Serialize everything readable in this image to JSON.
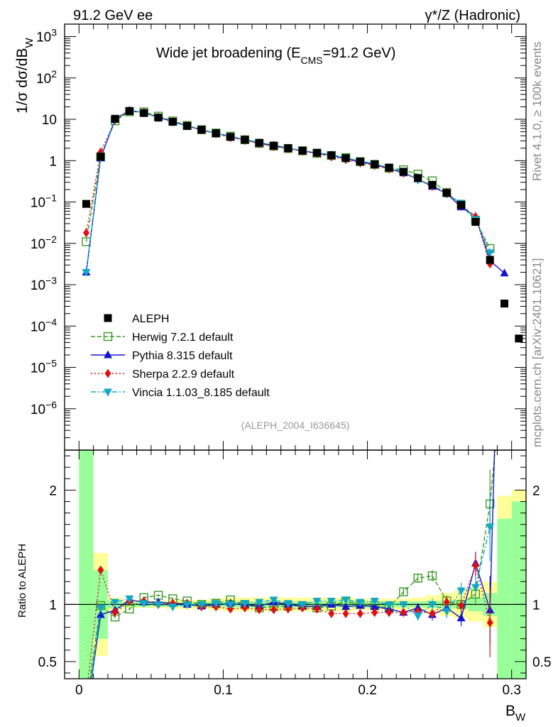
{
  "header": {
    "left": "91.2 GeV ee",
    "right": "γ*/Z (Hadronic)"
  },
  "side_notes": {
    "rivet": "Rivet 4.1.0, ≥ 100k events",
    "mcplots": "mcplots.cern.ch [arXiv:2401.10621]"
  },
  "chart_data": {
    "type": "line",
    "title": "Wide jet broadening (E_CMS=91.2 GeV)",
    "title_main": "Wide jet broadening (E",
    "title_sub": "CMS",
    "title_tail": "=91.2 GeV)",
    "analysis_tag": "(ALEPH_2004_I636645)",
    "xlabel": "B",
    "xlabel_sub": "W",
    "ylabel": "1/σ dσ/dB_W",
    "ylabel_main": "1/σ  dσ/dB",
    "ylabel_sub": "W",
    "ratio_ylabel": "Ratio to ALEPH",
    "xlim": [
      -0.01,
      0.31
    ],
    "ylim_log": [
      1e-07,
      2000
    ],
    "ratio_ylim": [
      0.35,
      2.35
    ],
    "x_ticks": [
      {
        "value": 0,
        "label": "0"
      },
      {
        "value": 0.1,
        "label": "0.1"
      },
      {
        "value": 0.2,
        "label": "0.2"
      },
      {
        "value": 0.3,
        "label": "0.3"
      }
    ],
    "y_ticks": [
      {
        "value": 1000,
        "base": "10",
        "exp": "3"
      },
      {
        "value": 100,
        "base": "10",
        "exp": "2"
      },
      {
        "value": 10,
        "base": "10",
        "exp": ""
      },
      {
        "value": 1,
        "base": "1",
        "exp": ""
      },
      {
        "value": 0.1,
        "base": "10",
        "exp": "−1"
      },
      {
        "value": 0.01,
        "base": "10",
        "exp": "−2"
      },
      {
        "value": 0.001,
        "base": "10",
        "exp": "−3"
      },
      {
        "value": 0.0001,
        "base": "10",
        "exp": "−4"
      },
      {
        "value": 1e-05,
        "base": "10",
        "exp": "−5"
      },
      {
        "value": 1e-06,
        "base": "10",
        "exp": "−6"
      }
    ],
    "ratio_ticks": [
      {
        "value": 2,
        "label": "2"
      },
      {
        "value": 1,
        "label": "1"
      },
      {
        "value": 0.5,
        "label": "0.5"
      }
    ],
    "x": [
      0.005,
      0.015,
      0.025,
      0.035,
      0.045,
      0.055,
      0.065,
      0.075,
      0.085,
      0.095,
      0.105,
      0.115,
      0.125,
      0.135,
      0.145,
      0.155,
      0.165,
      0.175,
      0.185,
      0.195,
      0.205,
      0.215,
      0.225,
      0.235,
      0.245,
      0.255,
      0.265,
      0.275,
      0.285,
      0.295,
      0.305
    ],
    "reference": {
      "name": "ALEPH",
      "color": "#000000",
      "values": [
        0.09,
        1.25,
        10.3,
        15.8,
        14.2,
        11.0,
        8.7,
        6.9,
        5.6,
        4.6,
        3.75,
        3.2,
        2.7,
        2.3,
        2.0,
        1.75,
        1.55,
        1.35,
        1.15,
        0.95,
        0.82,
        0.68,
        0.54,
        0.38,
        0.26,
        0.165,
        0.085,
        0.033,
        0.004,
        0.00035,
        5e-05
      ],
      "band_green": [
        2.05,
        0.3,
        0.035,
        0.02,
        0.02,
        0.02,
        0.02,
        0.02,
        0.02,
        0.025,
        0.025,
        0.025,
        0.025,
        0.025,
        0.025,
        0.025,
        0.025,
        0.025,
        0.025,
        0.025,
        0.025,
        0.025,
        0.025,
        0.025,
        0.03,
        0.03,
        0.035,
        0.06,
        0.1,
        0.75,
        0.9
      ],
      "band_yellow": [
        2.35,
        0.45,
        0.06,
        0.03,
        0.03,
        0.03,
        0.04,
        0.04,
        0.04,
        0.05,
        0.06,
        0.06,
        0.06,
        0.06,
        0.06,
        0.06,
        0.06,
        0.06,
        0.06,
        0.05,
        0.05,
        0.05,
        0.05,
        0.06,
        0.08,
        0.1,
        0.12,
        0.15,
        0.2,
        0.95,
        1.0
      ]
    },
    "series": [
      {
        "name": "Herwig 7.2.1 default",
        "color": "#3a9a24",
        "marker": "open-square",
        "dash": "6,3",
        "values": [
          0.011,
          1.24,
          9.2,
          15.2,
          15.1,
          11.9,
          9.1,
          7.1,
          5.6,
          4.65,
          3.9,
          3.2,
          2.62,
          2.25,
          1.97,
          1.73,
          1.5,
          1.33,
          1.18,
          0.95,
          0.81,
          0.66,
          0.6,
          0.47,
          0.325,
          0.17,
          0.085,
          0.036,
          0.0075,
          null,
          null
        ],
        "ratio": [
          0.12,
          0.99,
          0.89,
          0.96,
          1.06,
          1.08,
          1.05,
          1.03,
          1.0,
          1.01,
          1.04,
          1.0,
          0.97,
          0.98,
          0.985,
          0.99,
          0.97,
          0.985,
          1.03,
          1.0,
          0.99,
          0.97,
          1.11,
          1.23,
          1.25,
          1.03,
          1.0,
          1.09,
          1.88,
          3.2,
          null
        ],
        "errors": [
          0.02,
          0.02,
          0.01,
          0.01,
          0.01,
          0.01,
          0.01,
          0.01,
          0.01,
          0.01,
          0.01,
          0.01,
          0.01,
          0.01,
          0.01,
          0.01,
          0.01,
          0.01,
          0.01,
          0.01,
          0.02,
          0.02,
          0.03,
          0.04,
          0.05,
          0.05,
          0.06,
          0.1,
          0.3,
          0.5,
          null
        ]
      },
      {
        "name": "Pythia 8.315 default",
        "color": "#1414d0",
        "marker": "triangle-up",
        "dash": "",
        "values": [
          0.002,
          1.15,
          9.8,
          16.5,
          14.5,
          11.2,
          8.8,
          6.9,
          5.55,
          4.6,
          3.8,
          3.2,
          2.65,
          2.35,
          2.0,
          1.72,
          1.52,
          1.35,
          1.12,
          0.94,
          0.8,
          0.65,
          0.5,
          0.36,
          0.235,
          0.16,
          0.075,
          0.045,
          0.0038,
          0.0019,
          null
        ],
        "ratio": [
          0.02,
          0.91,
          0.95,
          1.04,
          1.02,
          1.02,
          1.01,
          1.0,
          0.985,
          1.0,
          1.01,
          1.0,
          0.985,
          1.02,
          1.0,
          0.985,
          0.98,
          1.0,
          0.98,
          0.99,
          0.98,
          0.96,
          0.93,
          0.97,
          0.91,
          0.97,
          0.88,
          1.36,
          0.95,
          5.4,
          null
        ],
        "errors": [
          0.02,
          0.03,
          0.01,
          0.01,
          0.01,
          0.01,
          0.01,
          0.01,
          0.01,
          0.01,
          0.01,
          0.01,
          0.01,
          0.01,
          0.01,
          0.01,
          0.01,
          0.01,
          0.01,
          0.01,
          0.02,
          0.02,
          0.03,
          0.04,
          0.05,
          0.06,
          0.07,
          0.1,
          0.3,
          2.0,
          null
        ]
      },
      {
        "name": "Sherpa 2.2.9 default",
        "color": "#e01010",
        "marker": "diamond",
        "dash": "2,3",
        "values": [
          0.018,
          1.6,
          9.6,
          16.2,
          14.6,
          11.0,
          8.8,
          7.0,
          5.5,
          4.5,
          3.6,
          3.1,
          2.58,
          2.2,
          1.92,
          1.7,
          1.5,
          1.24,
          1.06,
          0.88,
          0.77,
          0.63,
          0.5,
          0.36,
          0.24,
          0.17,
          0.085,
          0.044,
          0.0032,
          null,
          null
        ],
        "ratio": [
          0.2,
          1.3,
          0.93,
          1.03,
          1.03,
          1.0,
          1.01,
          1.01,
          0.98,
          0.98,
          0.96,
          0.97,
          0.955,
          0.955,
          0.96,
          0.97,
          0.96,
          0.92,
          0.92,
          0.92,
          0.93,
          0.93,
          0.93,
          0.94,
          0.92,
          1.02,
          0.99,
          1.34,
          0.84,
          null,
          null
        ],
        "errors": [
          0.02,
          0.03,
          0.01,
          0.01,
          0.01,
          0.01,
          0.01,
          0.01,
          0.01,
          0.01,
          0.01,
          0.01,
          0.01,
          0.01,
          0.01,
          0.01,
          0.01,
          0.01,
          0.01,
          0.01,
          0.02,
          0.02,
          0.02,
          0.03,
          0.04,
          0.05,
          0.05,
          0.1,
          0.3,
          null,
          null
        ]
      },
      {
        "name": "Vincia 1.1.03_8.185 default",
        "color": "#10a8c8",
        "marker": "triangle-down",
        "dash": "7,3,2,3",
        "values": [
          0.002,
          1.2,
          10.5,
          16.6,
          14.3,
          11.0,
          8.5,
          6.9,
          5.6,
          4.65,
          3.75,
          3.25,
          2.75,
          2.4,
          2.02,
          1.75,
          1.6,
          1.38,
          1.2,
          0.97,
          0.85,
          0.68,
          0.54,
          0.34,
          0.26,
          0.155,
          0.095,
          0.038,
          0.006,
          null,
          null
        ],
        "ratio": [
          0.02,
          0.97,
          1.02,
          1.05,
          1.01,
          1.0,
          0.98,
          1.0,
          1.0,
          1.01,
          1.0,
          1.01,
          1.02,
          1.04,
          1.01,
          1.0,
          1.03,
          1.03,
          1.04,
          1.02,
          1.03,
          1.0,
          1.0,
          0.9,
          1.0,
          0.94,
          1.12,
          1.15,
          1.68,
          null,
          null
        ],
        "errors": [
          0.02,
          0.03,
          0.01,
          0.01,
          0.01,
          0.01,
          0.01,
          0.01,
          0.01,
          0.01,
          0.01,
          0.01,
          0.01,
          0.01,
          0.01,
          0.01,
          0.01,
          0.01,
          0.01,
          0.01,
          0.02,
          0.02,
          0.03,
          0.04,
          0.05,
          0.06,
          0.07,
          0.1,
          0.3,
          null,
          null
        ]
      }
    ]
  }
}
